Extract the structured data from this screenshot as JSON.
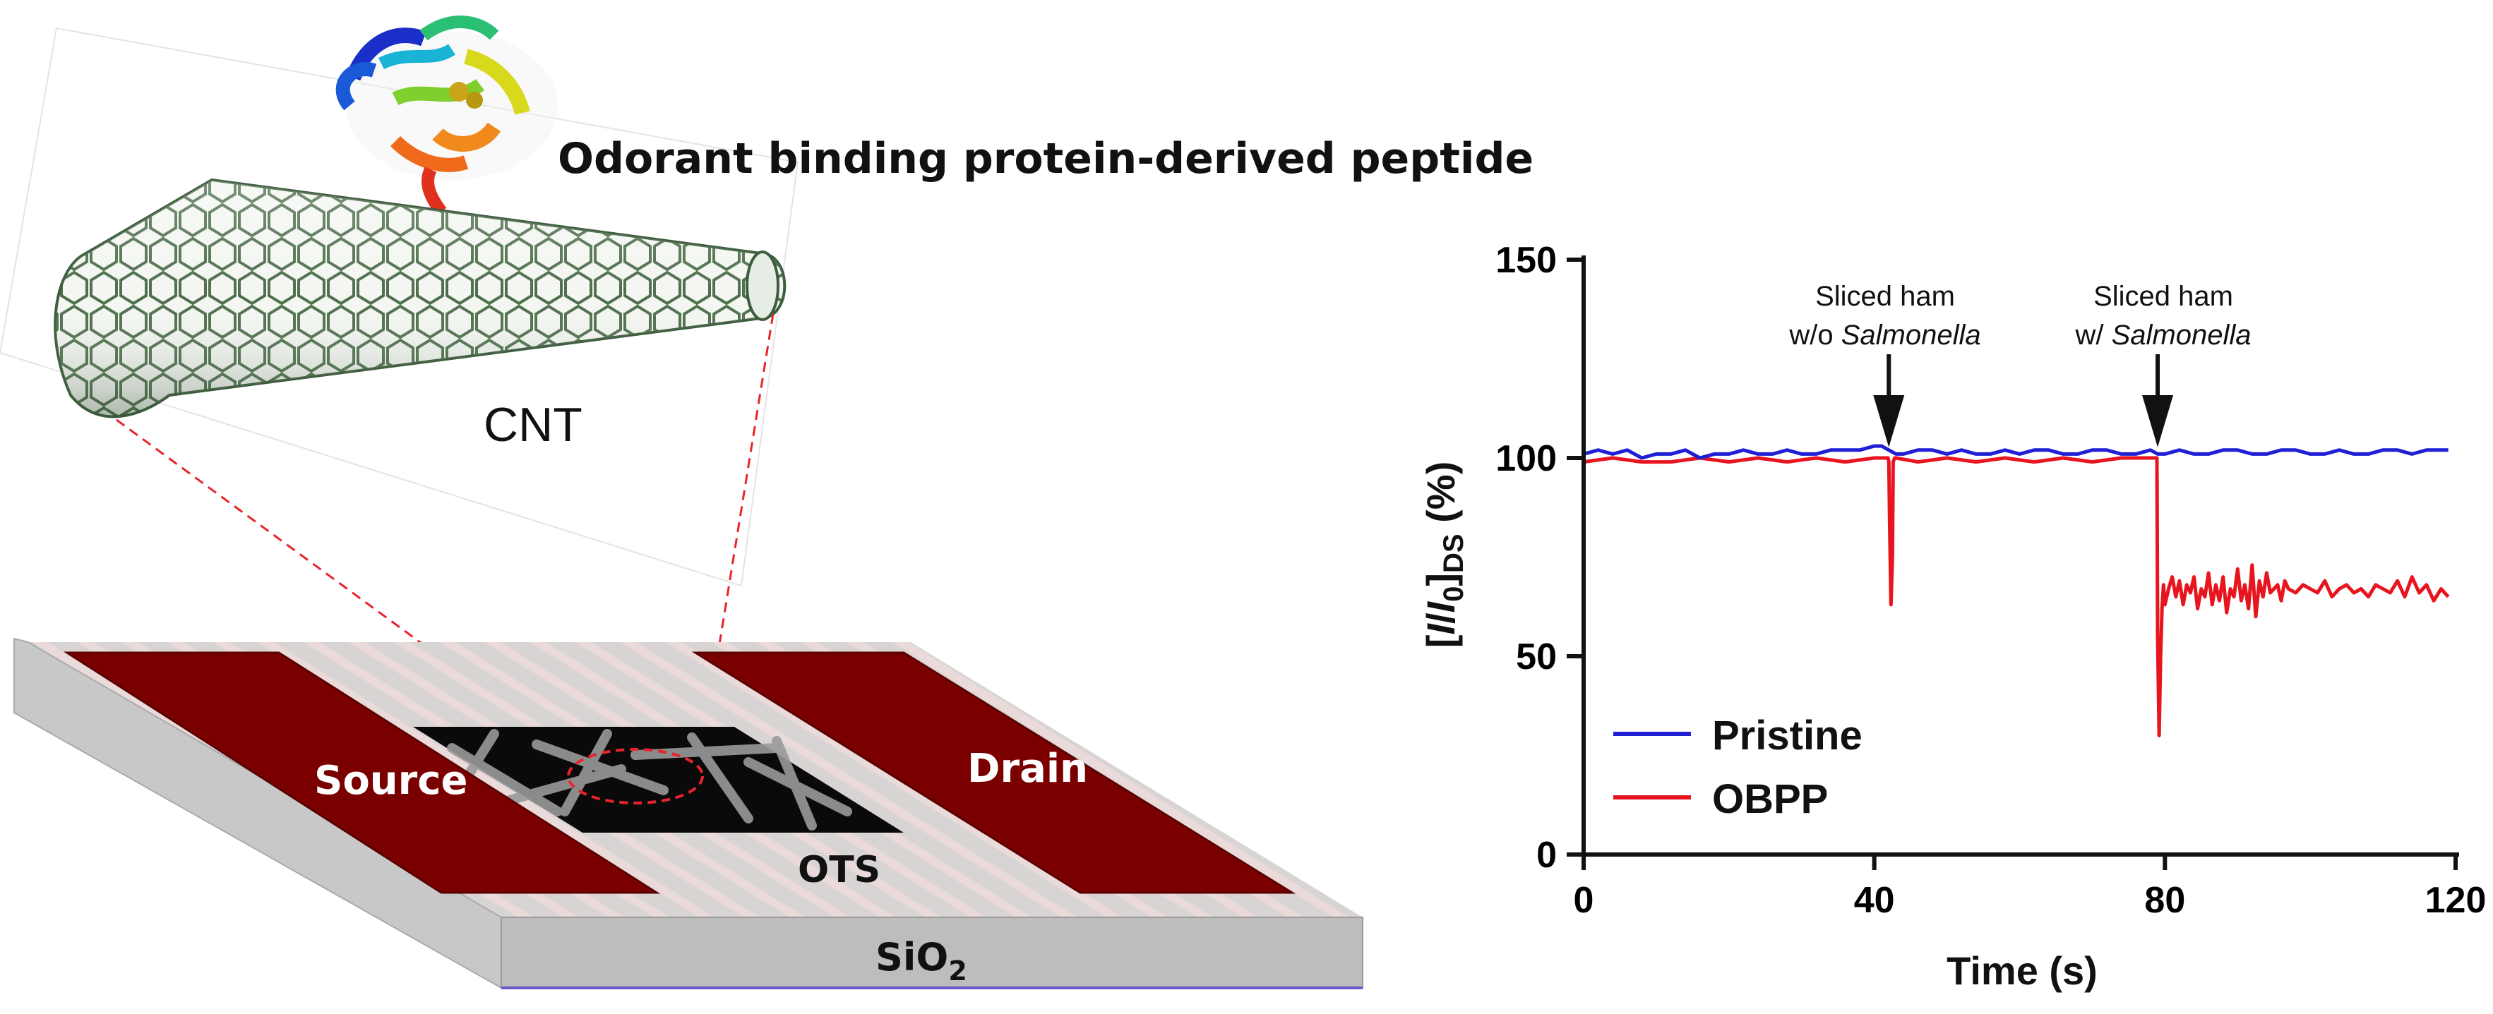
{
  "illustration": {
    "peptide_label": "Odorant binding protein-derived peptide",
    "cnt_label": "CNT",
    "source_label": "Source",
    "drain_label": "Drain",
    "ots_label": "OTS",
    "substrate_label": "SiO",
    "substrate_subscript": "2",
    "colors": {
      "electrode": "#7a0000",
      "cnt": "#3d5c3d",
      "callout": "#e8242c",
      "substrate": "#c8c8c8"
    }
  },
  "chart_data": {
    "type": "line",
    "xlabel": "Time (s)",
    "ylabel": "[I/I0]DS (%)",
    "ylabel_parts": {
      "open": "[",
      "i": "I",
      "slash": "/",
      "i0": "I",
      "sub0": "0",
      "close": "]",
      "subDS": "DS",
      "unit": " (%)"
    },
    "xlim": [
      0,
      120
    ],
    "ylim": [
      0,
      150
    ],
    "xticks": [
      0,
      40,
      80,
      120
    ],
    "yticks": [
      0,
      50,
      100,
      150
    ],
    "grid": false,
    "legend_position": "bottom-left",
    "annotations": [
      {
        "x": 42,
        "line1": "Sliced ham",
        "line2_prefix": "w/o ",
        "line2_italic": "Salmonella"
      },
      {
        "x": 79,
        "line1": "Sliced ham",
        "line2_prefix": "w/ ",
        "line2_italic": "Salmonella"
      }
    ],
    "series": [
      {
        "name": "Pristine",
        "color": "#1f1fd6",
        "x": [
          0,
          2,
          4,
          6,
          8,
          10,
          12,
          14,
          16,
          18,
          20,
          22,
          24,
          26,
          28,
          30,
          32,
          34,
          36,
          38,
          40,
          41,
          42,
          43,
          44,
          46,
          48,
          50,
          52,
          54,
          56,
          58,
          60,
          62,
          64,
          66,
          68,
          70,
          72,
          74,
          76,
          78,
          79,
          80,
          82,
          84,
          86,
          88,
          90,
          92,
          94,
          96,
          98,
          100,
          102,
          104,
          106,
          108,
          110,
          112,
          114,
          116,
          118,
          119
        ],
        "y": [
          101,
          102,
          101,
          102,
          100,
          101,
          101,
          102,
          100,
          101,
          101,
          102,
          101,
          101,
          102,
          101,
          101,
          102,
          102,
          102,
          103,
          103,
          102,
          101,
          101,
          102,
          102,
          101,
          102,
          101,
          101,
          102,
          101,
          102,
          102,
          101,
          101,
          102,
          102,
          101,
          101,
          102,
          101,
          101,
          102,
          101,
          101,
          102,
          102,
          101,
          101,
          102,
          102,
          101,
          101,
          102,
          101,
          101,
          102,
          102,
          101,
          102,
          102,
          102
        ]
      },
      {
        "name": "OBPP",
        "color": "#e8141e",
        "x": [
          0,
          4,
          8,
          12,
          16,
          20,
          24,
          28,
          32,
          36,
          40,
          41.9,
          42,
          42.1,
          42.3,
          42.5,
          42.6,
          42.8,
          43,
          46,
          50,
          54,
          58,
          62,
          66,
          70,
          74,
          78,
          78.9,
          79,
          79.2,
          79.4,
          79.6,
          79.8,
          80,
          80.5,
          81,
          81.5,
          82,
          82.5,
          83,
          83.5,
          84,
          84.5,
          85,
          85.5,
          86,
          86.5,
          87,
          87.5,
          88,
          88.5,
          89,
          89.5,
          90,
          90.5,
          91,
          91.5,
          92,
          92.5,
          93,
          93.5,
          94,
          94.5,
          95,
          95.5,
          96,
          96.5,
          97,
          98,
          99,
          100,
          101,
          102,
          103,
          104,
          105,
          106,
          107,
          108,
          109,
          110,
          111,
          112,
          113,
          114,
          115,
          116,
          117,
          118,
          119
        ],
        "y": [
          99,
          100,
          99,
          99,
          100,
          99,
          100,
          99,
          100,
          99,
          100,
          100,
          99,
          85,
          63,
          75,
          99,
          100,
          100,
          99,
          100,
          99,
          100,
          99,
          100,
          99,
          100,
          100,
          100,
          55,
          30,
          50,
          62,
          68,
          63,
          67,
          70,
          65,
          69,
          63,
          68,
          66,
          70,
          62,
          67,
          65,
          71,
          63,
          68,
          64,
          70,
          61,
          67,
          65,
          72,
          64,
          68,
          62,
          73,
          60,
          69,
          65,
          71,
          66,
          67,
          68,
          64,
          69,
          67,
          66,
          68,
          67,
          66,
          69,
          65,
          67,
          68,
          66,
          67,
          65,
          68,
          67,
          66,
          69,
          65,
          70,
          66,
          68,
          64,
          67,
          65
        ]
      }
    ]
  }
}
